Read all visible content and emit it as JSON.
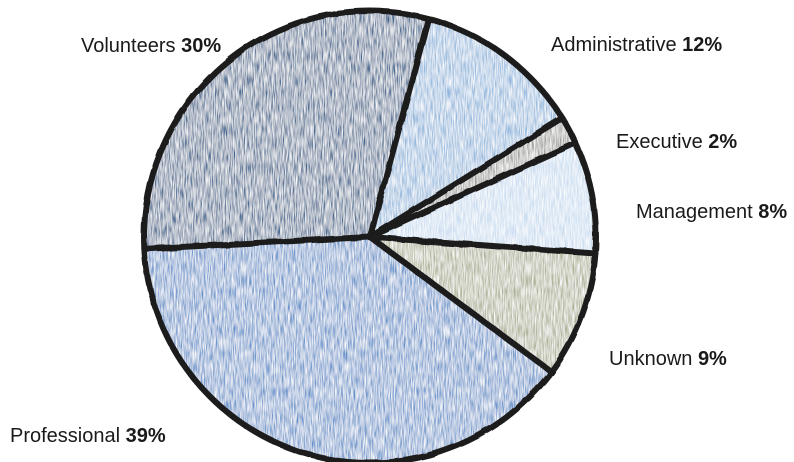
{
  "chart_data": {
    "type": "pie",
    "title": "",
    "slices": [
      {
        "label": "Administrative",
        "value": 12,
        "display": "12%",
        "color": "#8fb6dc"
      },
      {
        "label": "Executive",
        "value": 2,
        "display": "2%",
        "color": "#9a9a94"
      },
      {
        "label": "Management",
        "value": 8,
        "display": "8%",
        "color": "#c6daef"
      },
      {
        "label": "Unknown",
        "value": 9,
        "display": "9%",
        "color": "#a9ad90"
      },
      {
        "label": "Professional",
        "value": 39,
        "display": "39%",
        "color": "#5f8fc9"
      },
      {
        "label": "Volunteers",
        "value": 30,
        "display": "30%",
        "color": "#3c638e"
      }
    ],
    "outline_color": "#1c1c1c",
    "label_placement": "outside"
  }
}
